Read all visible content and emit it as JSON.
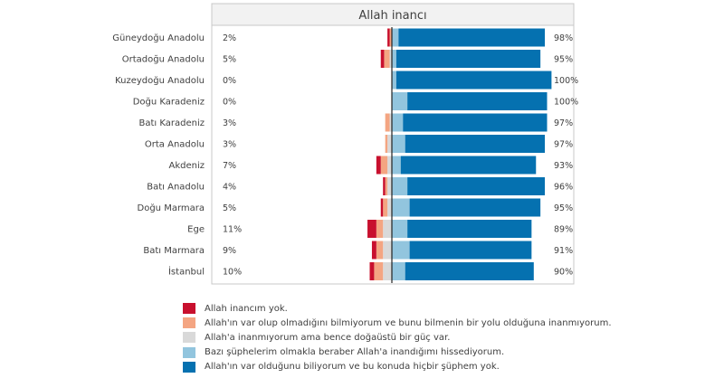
{
  "chart_data": {
    "type": "bar",
    "orientation": "horizontal-diverging",
    "title": "Allah inancı",
    "categories": [
      "Güneydoğu Anadolu",
      "Ortadoğu Anadolu",
      "Kuzeydoğu Anadolu",
      "Doğu Karadeniz",
      "Batı Karadeniz",
      "Orta Anadolu",
      "Akdeniz",
      "Batı Anadolu",
      "Doğu Marmara",
      "Ege",
      "Batı Marmara",
      "İstanbul"
    ],
    "left_labels": [
      "2%",
      "5%",
      "0%",
      "0%",
      "3%",
      "3%",
      "7%",
      "4%",
      "5%",
      "11%",
      "9%",
      "10%"
    ],
    "right_labels": [
      "98%",
      "95%",
      "100%",
      "100%",
      "97%",
      "97%",
      "93%",
      "96%",
      "95%",
      "89%",
      "91%",
      "90%"
    ],
    "series": [
      {
        "name": "Allah inancım yok.",
        "color": "#c8102e",
        "side": "left",
        "values": [
          1,
          1.5,
          0,
          0,
          0,
          0,
          2,
          1,
          1,
          4,
          2,
          2
        ]
      },
      {
        "name": "Allah'ın var olup olmadığını bilmiyorum ve bunu bilmenin bir yolu olduğuna inanmıyorum.",
        "color": "#f4a582",
        "side": "left",
        "values": [
          1,
          2.5,
          0,
          0,
          2,
          1,
          3,
          1,
          2,
          3,
          3,
          4
        ]
      },
      {
        "name": "Allah'a inanmıyorum ama bence doğaüstü bir güç var.",
        "color": "#d9d9d9",
        "side": "left",
        "values": [
          0,
          1,
          0,
          0,
          1,
          2,
          2,
          2,
          2,
          4,
          4,
          4
        ]
      },
      {
        "name": "Bazı şüphelerim olmakla beraber Allah'a inandığımı hissediyorum.",
        "color": "#92c5de",
        "side": "right",
        "values": [
          3,
          2,
          2,
          7,
          5,
          6,
          4,
          7,
          8,
          7,
          8,
          6
        ]
      },
      {
        "name": "Allah'ın var olduğunu biliyorum ve bu konuda hiçbir şüphem yok.",
        "color": "#0571b0",
        "side": "right",
        "values": [
          66,
          65,
          70,
          63,
          65,
          63,
          61,
          62,
          59,
          56,
          55,
          58
        ]
      }
    ],
    "xlim": [
      -15,
      75
    ],
    "grid": false,
    "legend_position": "bottom"
  }
}
